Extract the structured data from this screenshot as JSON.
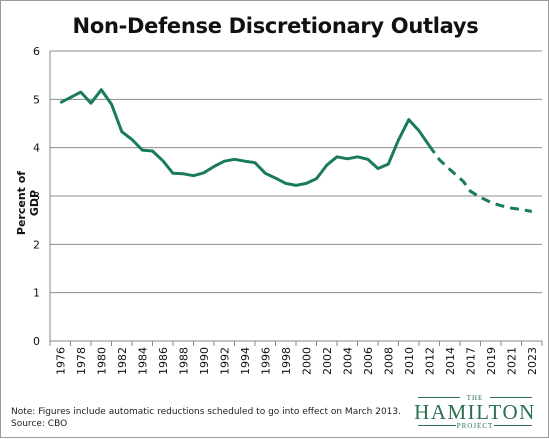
{
  "chart_data": {
    "type": "line",
    "title": "Non-Defense Discretionary Outlays",
    "ylabel": "Percent of GDP",
    "xlabel": "",
    "ylim": [
      0,
      6
    ],
    "yticks": [
      0,
      1,
      2,
      3,
      4,
      5,
      6
    ],
    "xticks": [
      "1976",
      "1978",
      "1980",
      "1982",
      "1984",
      "1986",
      "1988",
      "1990",
      "1992",
      "1994",
      "1996",
      "1998",
      "2000",
      "2002",
      "2004",
      "2006",
      "2008",
      "2010",
      "2012",
      "2014",
      "2017",
      "2019",
      "2021",
      "2023"
    ],
    "grid": "horizontal",
    "color": "#1a7a5e",
    "series": [
      {
        "name": "",
        "style": "solid",
        "points": [
          [
            1976,
            4.93
          ],
          [
            1977,
            5.04
          ],
          [
            1978,
            5.15
          ],
          [
            1979,
            4.92
          ],
          [
            1980,
            5.2
          ],
          [
            1981,
            4.9
          ],
          [
            1982,
            4.33
          ],
          [
            1983,
            4.17
          ],
          [
            1984,
            3.95
          ],
          [
            1985,
            3.93
          ],
          [
            1986,
            3.73
          ],
          [
            1987,
            3.47
          ],
          [
            1988,
            3.46
          ],
          [
            1989,
            3.42
          ],
          [
            1990,
            3.48
          ],
          [
            1991,
            3.61
          ],
          [
            1992,
            3.72
          ],
          [
            1993,
            3.76
          ],
          [
            1994,
            3.72
          ],
          [
            1995,
            3.69
          ],
          [
            1996,
            3.47
          ],
          [
            1997,
            3.37
          ],
          [
            1998,
            3.26
          ],
          [
            1999,
            3.22
          ],
          [
            2000,
            3.26
          ],
          [
            2001,
            3.36
          ],
          [
            2002,
            3.64
          ],
          [
            2003,
            3.81
          ],
          [
            2004,
            3.77
          ],
          [
            2005,
            3.81
          ],
          [
            2006,
            3.76
          ],
          [
            2007,
            3.57
          ],
          [
            2008,
            3.66
          ],
          [
            2009,
            4.16
          ],
          [
            2010,
            4.58
          ],
          [
            2011,
            4.35
          ],
          [
            2012,
            4.04
          ]
        ]
      },
      {
        "name": "",
        "style": "dashed",
        "points": [
          [
            2012,
            4.04
          ],
          [
            2013,
            3.75
          ],
          [
            2014,
            3.55
          ],
          [
            2016,
            3.3
          ],
          [
            2017,
            3.1
          ],
          [
            2018,
            2.97
          ],
          [
            2019,
            2.87
          ],
          [
            2020,
            2.8
          ],
          [
            2021,
            2.75
          ],
          [
            2022,
            2.72
          ],
          [
            2023,
            2.68
          ]
        ]
      }
    ]
  },
  "note": {
    "line1": "Note: Figures include automatic reductions scheduled to go into effect on March 2013.",
    "line2": "Source: CBO"
  },
  "logo": {
    "top": "THE",
    "name": "HAMILTON",
    "bottom": "PROJECT"
  }
}
